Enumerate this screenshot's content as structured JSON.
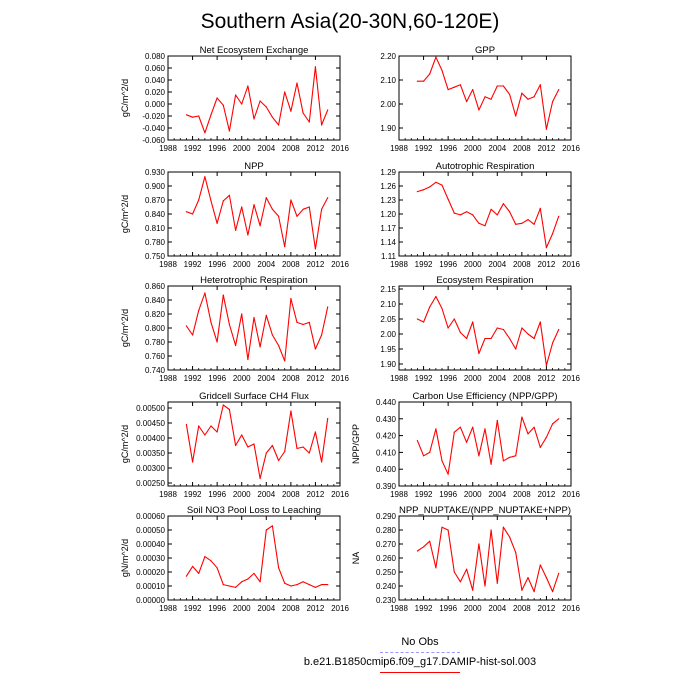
{
  "title": "Southern Asia(20-30N,60-120E)",
  "colors": {
    "model_line": "#ff0000",
    "obs_line": "#9999ff",
    "axis": "#000000"
  },
  "legend": [
    {
      "label": "No Obs",
      "color": "#9999ff",
      "style": "dashed"
    },
    {
      "label": "b.e21.B1850cmip6.f09_g17.DAMIP-hist-sol.003",
      "color": "#ff0000",
      "style": "solid"
    }
  ],
  "chart_data": [
    {
      "type": "line",
      "title": "Net Ecosystem Exchange",
      "ylabel": "gC/m^2/d",
      "xlim": [
        1988,
        2016
      ],
      "xticks": [
        1988,
        1992,
        1996,
        2000,
        2004,
        2008,
        2012,
        2016
      ],
      "ylim": [
        -0.06,
        0.08
      ],
      "yticks": [
        "-0.060",
        "-0.040",
        "-0.020",
        "0.000",
        "0.020",
        "0.040",
        "0.060",
        "0.080"
      ],
      "x": [
        1991,
        1992,
        1993,
        1994,
        1995,
        1996,
        1997,
        1998,
        1999,
        2000,
        2001,
        2002,
        2003,
        2004,
        2005,
        2006,
        2007,
        2008,
        2009,
        2010,
        2011,
        2012,
        2013,
        2014
      ],
      "y": [
        -0.018,
        -0.022,
        -0.02,
        -0.048,
        -0.018,
        0.01,
        -0.002,
        -0.045,
        0.015,
        0.0,
        0.03,
        -0.025,
        0.005,
        -0.005,
        -0.022,
        -0.035,
        0.02,
        -0.012,
        0.035,
        -0.015,
        -0.03,
        0.062,
        -0.035,
        -0.01
      ]
    },
    {
      "type": "line",
      "title": "GPP",
      "ylabel": "",
      "xlim": [
        1988,
        2016
      ],
      "xticks": [
        1988,
        1992,
        1996,
        2000,
        2004,
        2008,
        2012,
        2016
      ],
      "ylim": [
        1.85,
        2.2
      ],
      "yticks": [
        "1.90",
        "2.00",
        "2.10",
        "2.20"
      ],
      "x": [
        1991,
        1992,
        1993,
        1994,
        1995,
        1996,
        1997,
        1998,
        1999,
        2000,
        2001,
        2002,
        2003,
        2004,
        2005,
        2006,
        2007,
        2008,
        2009,
        2010,
        2011,
        2012,
        2013,
        2014
      ],
      "y": [
        2.095,
        2.095,
        2.125,
        2.195,
        2.14,
        2.06,
        2.07,
        2.08,
        2.01,
        2.06,
        1.975,
        2.03,
        2.02,
        2.075,
        2.075,
        2.04,
        1.95,
        2.045,
        2.02,
        2.03,
        2.08,
        1.895,
        2.01,
        2.06
      ]
    },
    {
      "type": "line",
      "title": "NPP",
      "ylabel": "gC/m^2/d",
      "xlim": [
        1988,
        2016
      ],
      "xticks": [
        1988,
        1992,
        1996,
        2000,
        2004,
        2008,
        2012,
        2016
      ],
      "ylim": [
        0.75,
        0.93
      ],
      "yticks": [
        "0.750",
        "0.780",
        "0.810",
        "0.840",
        "0.870",
        "0.900",
        "0.930"
      ],
      "x": [
        1991,
        1992,
        1993,
        1994,
        1995,
        1996,
        1997,
        1998,
        1999,
        2000,
        2001,
        2002,
        2003,
        2004,
        2005,
        2006,
        2007,
        2008,
        2009,
        2010,
        2011,
        2012,
        2013,
        2014
      ],
      "y": [
        0.845,
        0.84,
        0.87,
        0.92,
        0.868,
        0.82,
        0.868,
        0.88,
        0.805,
        0.855,
        0.795,
        0.86,
        0.815,
        0.875,
        0.85,
        0.835,
        0.77,
        0.87,
        0.835,
        0.85,
        0.855,
        0.765,
        0.85,
        0.875
      ]
    },
    {
      "type": "line",
      "title": "Autotrophic Respiration",
      "ylabel": "",
      "xlim": [
        1988,
        2016
      ],
      "xticks": [
        1988,
        1992,
        1996,
        2000,
        2004,
        2008,
        2012,
        2016
      ],
      "ylim": [
        1.11,
        1.29
      ],
      "yticks": [
        "1.11",
        "1.14",
        "1.17",
        "1.20",
        "1.23",
        "1.26",
        "1.29"
      ],
      "x": [
        1991,
        1992,
        1993,
        1994,
        1995,
        1996,
        1997,
        1998,
        1999,
        2000,
        2001,
        2002,
        2003,
        2004,
        2005,
        2006,
        2007,
        2008,
        2009,
        2010,
        2011,
        2012,
        2013,
        2014
      ],
      "y": [
        1.248,
        1.252,
        1.258,
        1.268,
        1.262,
        1.232,
        1.202,
        1.198,
        1.205,
        1.198,
        1.18,
        1.175,
        1.21,
        1.198,
        1.222,
        1.205,
        1.178,
        1.18,
        1.188,
        1.178,
        1.212,
        1.128,
        1.158,
        1.195
      ]
    },
    {
      "type": "line",
      "title": "Heterotrophic Respiration",
      "ylabel": "gC/m^2/d",
      "xlim": [
        1988,
        2016
      ],
      "xticks": [
        1988,
        1992,
        1996,
        2000,
        2004,
        2008,
        2012,
        2016
      ],
      "ylim": [
        0.74,
        0.86
      ],
      "yticks": [
        "0.740",
        "0.760",
        "0.780",
        "0.800",
        "0.820",
        "0.840",
        "0.860"
      ],
      "x": [
        1991,
        1992,
        1993,
        1994,
        1995,
        1996,
        1997,
        1998,
        1999,
        2000,
        2001,
        2002,
        2003,
        2004,
        2005,
        2006,
        2007,
        2008,
        2009,
        2010,
        2011,
        2012,
        2013,
        2014
      ],
      "y": [
        0.803,
        0.79,
        0.825,
        0.85,
        0.808,
        0.78,
        0.847,
        0.805,
        0.775,
        0.82,
        0.755,
        0.815,
        0.773,
        0.818,
        0.79,
        0.775,
        0.753,
        0.842,
        0.808,
        0.805,
        0.808,
        0.77,
        0.79,
        0.83
      ]
    },
    {
      "type": "line",
      "title": "Ecosystem Respiration",
      "ylabel": "",
      "xlim": [
        1988,
        2016
      ],
      "xticks": [
        1988,
        1992,
        1996,
        2000,
        2004,
        2008,
        2012,
        2016
      ],
      "ylim": [
        1.88,
        2.16
      ],
      "yticks": [
        "1.90",
        "1.95",
        "2.00",
        "2.05",
        "2.10",
        "2.15"
      ],
      "x": [
        1991,
        1992,
        1993,
        1994,
        1995,
        1996,
        1997,
        1998,
        1999,
        2000,
        2001,
        2002,
        2003,
        2004,
        2005,
        2006,
        2007,
        2008,
        2009,
        2010,
        2011,
        2012,
        2013,
        2014
      ],
      "y": [
        2.05,
        2.04,
        2.09,
        2.125,
        2.085,
        2.02,
        2.05,
        2.005,
        1.985,
        2.04,
        1.935,
        1.985,
        1.985,
        2.02,
        2.015,
        1.985,
        1.95,
        2.02,
        2.0,
        1.985,
        2.04,
        1.895,
        1.97,
        2.015
      ]
    },
    {
      "type": "line",
      "title": "Gridcell Surface CH4 Flux",
      "ylabel": "gC/m^2/d",
      "xlim": [
        1988,
        2016
      ],
      "xticks": [
        1988,
        1992,
        1996,
        2000,
        2004,
        2008,
        2012,
        2016
      ],
      "ylim": [
        0.0024,
        0.0052
      ],
      "yticks": [
        "0.00250",
        "0.00300",
        "0.00350",
        "0.00400",
        "0.00450",
        "0.00500"
      ],
      "x": [
        1991,
        1992,
        1993,
        1994,
        1995,
        1996,
        1997,
        1998,
        1999,
        2000,
        2001,
        2002,
        2003,
        2004,
        2005,
        2006,
        2007,
        2008,
        2009,
        2010,
        2011,
        2012,
        2013,
        2014
      ],
      "y": [
        0.00445,
        0.0032,
        0.0044,
        0.0041,
        0.0044,
        0.0042,
        0.0051,
        0.00495,
        0.00375,
        0.0041,
        0.0037,
        0.0038,
        0.00265,
        0.0035,
        0.00375,
        0.00325,
        0.00355,
        0.0049,
        0.00365,
        0.0037,
        0.0035,
        0.0042,
        0.0032,
        0.00465
      ]
    },
    {
      "type": "line",
      "title": "Carbon Use Efficiency (NPP/GPP)",
      "ylabel": "NPP/GPP",
      "xlim": [
        1988,
        2016
      ],
      "xticks": [
        1988,
        1992,
        1996,
        2000,
        2004,
        2008,
        2012,
        2016
      ],
      "ylim": [
        0.39,
        0.44
      ],
      "yticks": [
        "0.390",
        "0.400",
        "0.410",
        "0.420",
        "0.430",
        "0.440"
      ],
      "x": [
        1991,
        1992,
        1993,
        1994,
        1995,
        1996,
        1997,
        1998,
        1999,
        2000,
        2001,
        2002,
        2003,
        2004,
        2005,
        2006,
        2007,
        2008,
        2009,
        2010,
        2011,
        2012,
        2013,
        2014
      ],
      "y": [
        0.417,
        0.408,
        0.41,
        0.424,
        0.405,
        0.397,
        0.422,
        0.425,
        0.416,
        0.425,
        0.408,
        0.424,
        0.403,
        0.429,
        0.405,
        0.407,
        0.408,
        0.431,
        0.421,
        0.425,
        0.413,
        0.419,
        0.427,
        0.43
      ]
    },
    {
      "type": "line",
      "title": "Soil NO3 Pool Loss to Leaching",
      "ylabel": "gN/m^2/d",
      "xlim": [
        1988,
        2016
      ],
      "xticks": [
        1988,
        1992,
        1996,
        2000,
        2004,
        2008,
        2012,
        2016
      ],
      "ylim": [
        0.0,
        0.0006
      ],
      "yticks": [
        "0.00000",
        "0.00010",
        "0.00020",
        "0.00030",
        "0.00040",
        "0.00050",
        "0.00060"
      ],
      "x": [
        1991,
        1992,
        1993,
        1994,
        1995,
        1996,
        1997,
        1998,
        1999,
        2000,
        2001,
        2002,
        2003,
        2004,
        2005,
        2006,
        2007,
        2008,
        2009,
        2010,
        2011,
        2012,
        2013,
        2014
      ],
      "y": [
        0.00017,
        0.00024,
        0.00019,
        0.00031,
        0.00028,
        0.00023,
        0.00011,
        0.0001,
        9e-05,
        0.00013,
        0.00015,
        0.00019,
        0.00013,
        0.0005,
        0.00053,
        0.00023,
        0.00012,
        0.0001,
        0.00011,
        0.00013,
        0.00011,
        9e-05,
        0.00011,
        0.00011
      ]
    },
    {
      "type": "line",
      "title": "NPP_NUPTAKE/(NPP_NUPTAKE+NPP)",
      "ylabel": "NA",
      "xlim": [
        1988,
        2016
      ],
      "xticks": [
        1988,
        1992,
        1996,
        2000,
        2004,
        2008,
        2012,
        2016
      ],
      "ylim": [
        0.23,
        0.29
      ],
      "yticks": [
        "0.230",
        "0.240",
        "0.250",
        "0.260",
        "0.270",
        "0.280",
        "0.290"
      ],
      "x": [
        1991,
        1992,
        1993,
        1994,
        1995,
        1996,
        1997,
        1998,
        1999,
        2000,
        2001,
        2002,
        2003,
        2004,
        2005,
        2006,
        2007,
        2008,
        2009,
        2010,
        2011,
        2012,
        2013,
        2014
      ],
      "y": [
        0.265,
        0.268,
        0.272,
        0.253,
        0.282,
        0.28,
        0.25,
        0.243,
        0.252,
        0.237,
        0.27,
        0.24,
        0.28,
        0.242,
        0.282,
        0.275,
        0.264,
        0.237,
        0.246,
        0.236,
        0.255,
        0.246,
        0.236,
        0.249
      ]
    }
  ]
}
